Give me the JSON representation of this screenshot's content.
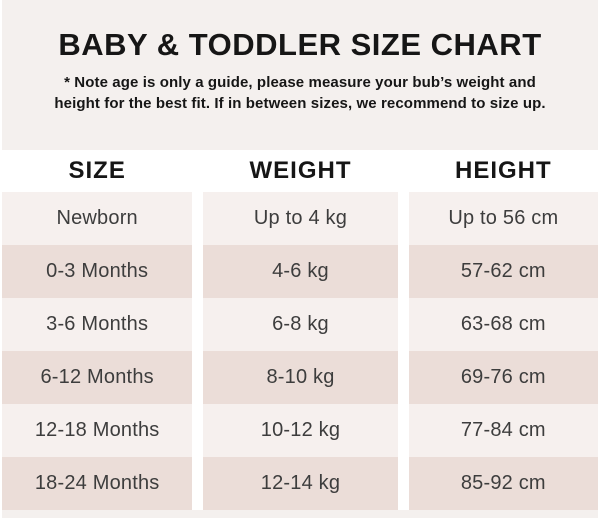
{
  "header": {
    "title": "BABY & TODDLER SIZE CHART",
    "note_line1": "* Note age is only a guide, please measure your bub’s weight and",
    "note_line2": "height for the best fit. If in between sizes, we recommend to size up."
  },
  "chart_data": {
    "type": "table",
    "title": "BABY & TODDLER SIZE CHART",
    "columns": [
      "SIZE",
      "WEIGHT",
      "HEIGHT"
    ],
    "rows": [
      [
        "Newborn",
        "Up to 4 kg",
        "Up to 56 cm"
      ],
      [
        "0-3 Months",
        "4-6 kg",
        "57-62 cm"
      ],
      [
        "3-6 Months",
        "6-8 kg",
        "63-68 cm"
      ],
      [
        "6-12 Months",
        "8-10 kg",
        "69-76 cm"
      ],
      [
        "12-18 Months",
        "10-12 kg",
        "77-84 cm"
      ],
      [
        "18-24 Months",
        "12-14 kg",
        "85-92 cm"
      ]
    ],
    "layout": {
      "row_alternating_colors": true,
      "header_background": "#ffffff",
      "column_gap_color": "#ffffff"
    }
  },
  "colors": {
    "bg_page": "#f4f0ee",
    "bg_white": "#ffffff",
    "row_light": "#f6f0ee",
    "row_dark": "#ebddd8",
    "text_dark": "#161616",
    "text_body": "#3d3d3d"
  }
}
